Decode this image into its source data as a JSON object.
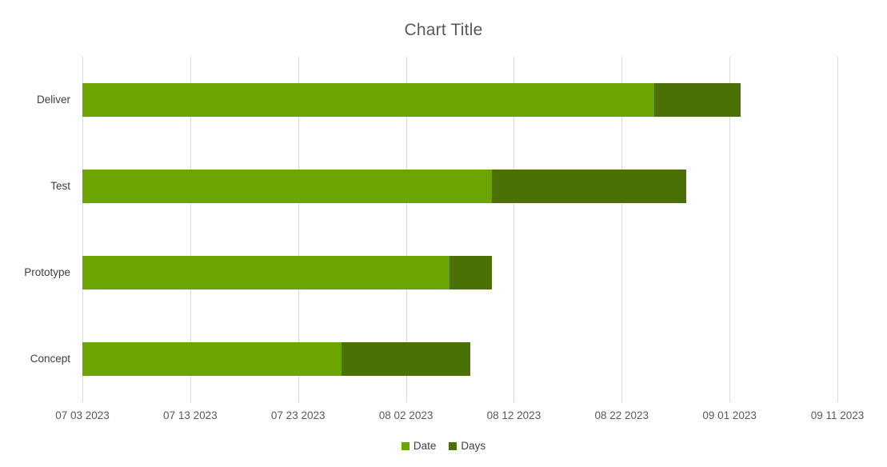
{
  "chart_data": {
    "type": "bar",
    "orientation": "horizontal",
    "stacked": true,
    "title": "Chart Title",
    "categories": [
      "Deliver",
      "Test",
      "Prototype",
      "Concept"
    ],
    "series": [
      {
        "name": "Date",
        "color": "#6CA402",
        "values": [
          53,
          38,
          34,
          24
        ]
      },
      {
        "name": "Days",
        "color": "#4B7005",
        "values": [
          8,
          18,
          4,
          12
        ]
      }
    ],
    "x_axis": {
      "tick_labels": [
        "07 03 2023",
        "07 13 2023",
        "07 23 2023",
        "08 02 2023",
        "08 12 2023",
        "08 22 2023",
        "09 01 2023",
        "09 11 2023"
      ],
      "tick_days": [
        0,
        10,
        20,
        30,
        40,
        50,
        60,
        70
      ],
      "range_days": [
        0,
        70
      ],
      "vertical_gridlines": true,
      "gridline_color": "#d9d9d9"
    },
    "legend": {
      "position": "bottom",
      "entries": [
        {
          "label": "Date",
          "color": "#6CA402"
        },
        {
          "label": "Days",
          "color": "#4B7005"
        }
      ]
    },
    "colors": {
      "title_text": "#595959",
      "axis_text": "#595959",
      "category_text": "#404040",
      "background": "#ffffff"
    }
  }
}
